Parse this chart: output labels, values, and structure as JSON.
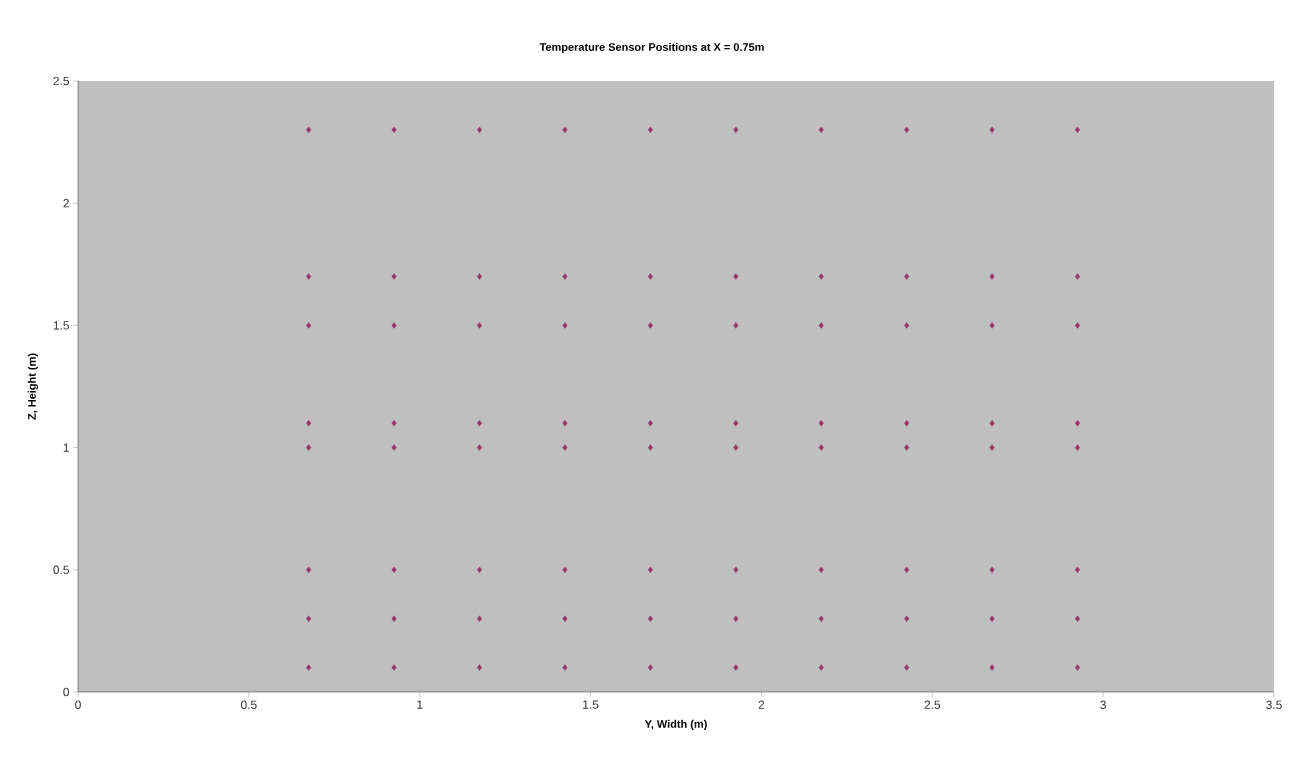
{
  "chart_data": {
    "type": "scatter",
    "title": "Temperature Sensor Positions at X = 0.75m",
    "xlabel": "Y, Width (m)",
    "ylabel": "Z, Height (m)",
    "x": [
      0.675,
      0.925,
      1.175,
      1.425,
      1.675,
      1.925,
      2.175,
      2.425,
      2.675,
      2.925,
      0.675,
      0.925,
      1.175,
      1.425,
      1.675,
      1.925,
      2.175,
      2.425,
      2.675,
      2.925,
      0.675,
      0.925,
      1.175,
      1.425,
      1.675,
      1.925,
      2.175,
      2.425,
      2.675,
      2.925,
      0.675,
      0.925,
      1.175,
      1.425,
      1.675,
      1.925,
      2.175,
      2.425,
      2.675,
      2.925,
      0.675,
      0.925,
      1.175,
      1.425,
      1.675,
      1.925,
      2.175,
      2.425,
      2.675,
      2.925,
      0.675,
      0.925,
      1.175,
      1.425,
      1.675,
      1.925,
      2.175,
      2.425,
      2.675,
      2.925,
      0.675,
      0.925,
      1.175,
      1.425,
      1.675,
      1.925,
      2.175,
      2.425,
      2.675,
      2.925,
      0.675,
      0.925,
      1.175,
      1.425,
      1.675,
      1.925,
      2.175,
      2.425,
      2.675,
      2.925
    ],
    "values": [
      2.3,
      2.3,
      2.3,
      2.3,
      2.3,
      2.3,
      2.3,
      2.3,
      2.3,
      2.3,
      1.7,
      1.7,
      1.7,
      1.7,
      1.7,
      1.7,
      1.7,
      1.7,
      1.7,
      1.7,
      1.5,
      1.5,
      1.5,
      1.5,
      1.5,
      1.5,
      1.5,
      1.5,
      1.5,
      1.5,
      1.1,
      1.1,
      1.1,
      1.1,
      1.1,
      1.1,
      1.1,
      1.1,
      1.1,
      1.1,
      1.0,
      1.0,
      1.0,
      1.0,
      1.0,
      1.0,
      1.0,
      1.0,
      1.0,
      1.0,
      0.5,
      0.5,
      0.5,
      0.5,
      0.5,
      0.5,
      0.5,
      0.5,
      0.5,
      0.5,
      0.3,
      0.3,
      0.3,
      0.3,
      0.3,
      0.3,
      0.3,
      0.3,
      0.3,
      0.3,
      0.1,
      0.1,
      0.1,
      0.1,
      0.1,
      0.1,
      0.1,
      0.1,
      0.1,
      0.1
    ],
    "color": "#993366",
    "marker": "diamond",
    "xlim": [
      0,
      3.5
    ],
    "ylim": [
      0,
      2.5
    ],
    "xticks": [
      0,
      0.5,
      1,
      1.5,
      2,
      2.5,
      3,
      3.5
    ],
    "yticks": [
      0,
      0.5,
      1,
      1.5,
      2,
      2.5
    ]
  }
}
